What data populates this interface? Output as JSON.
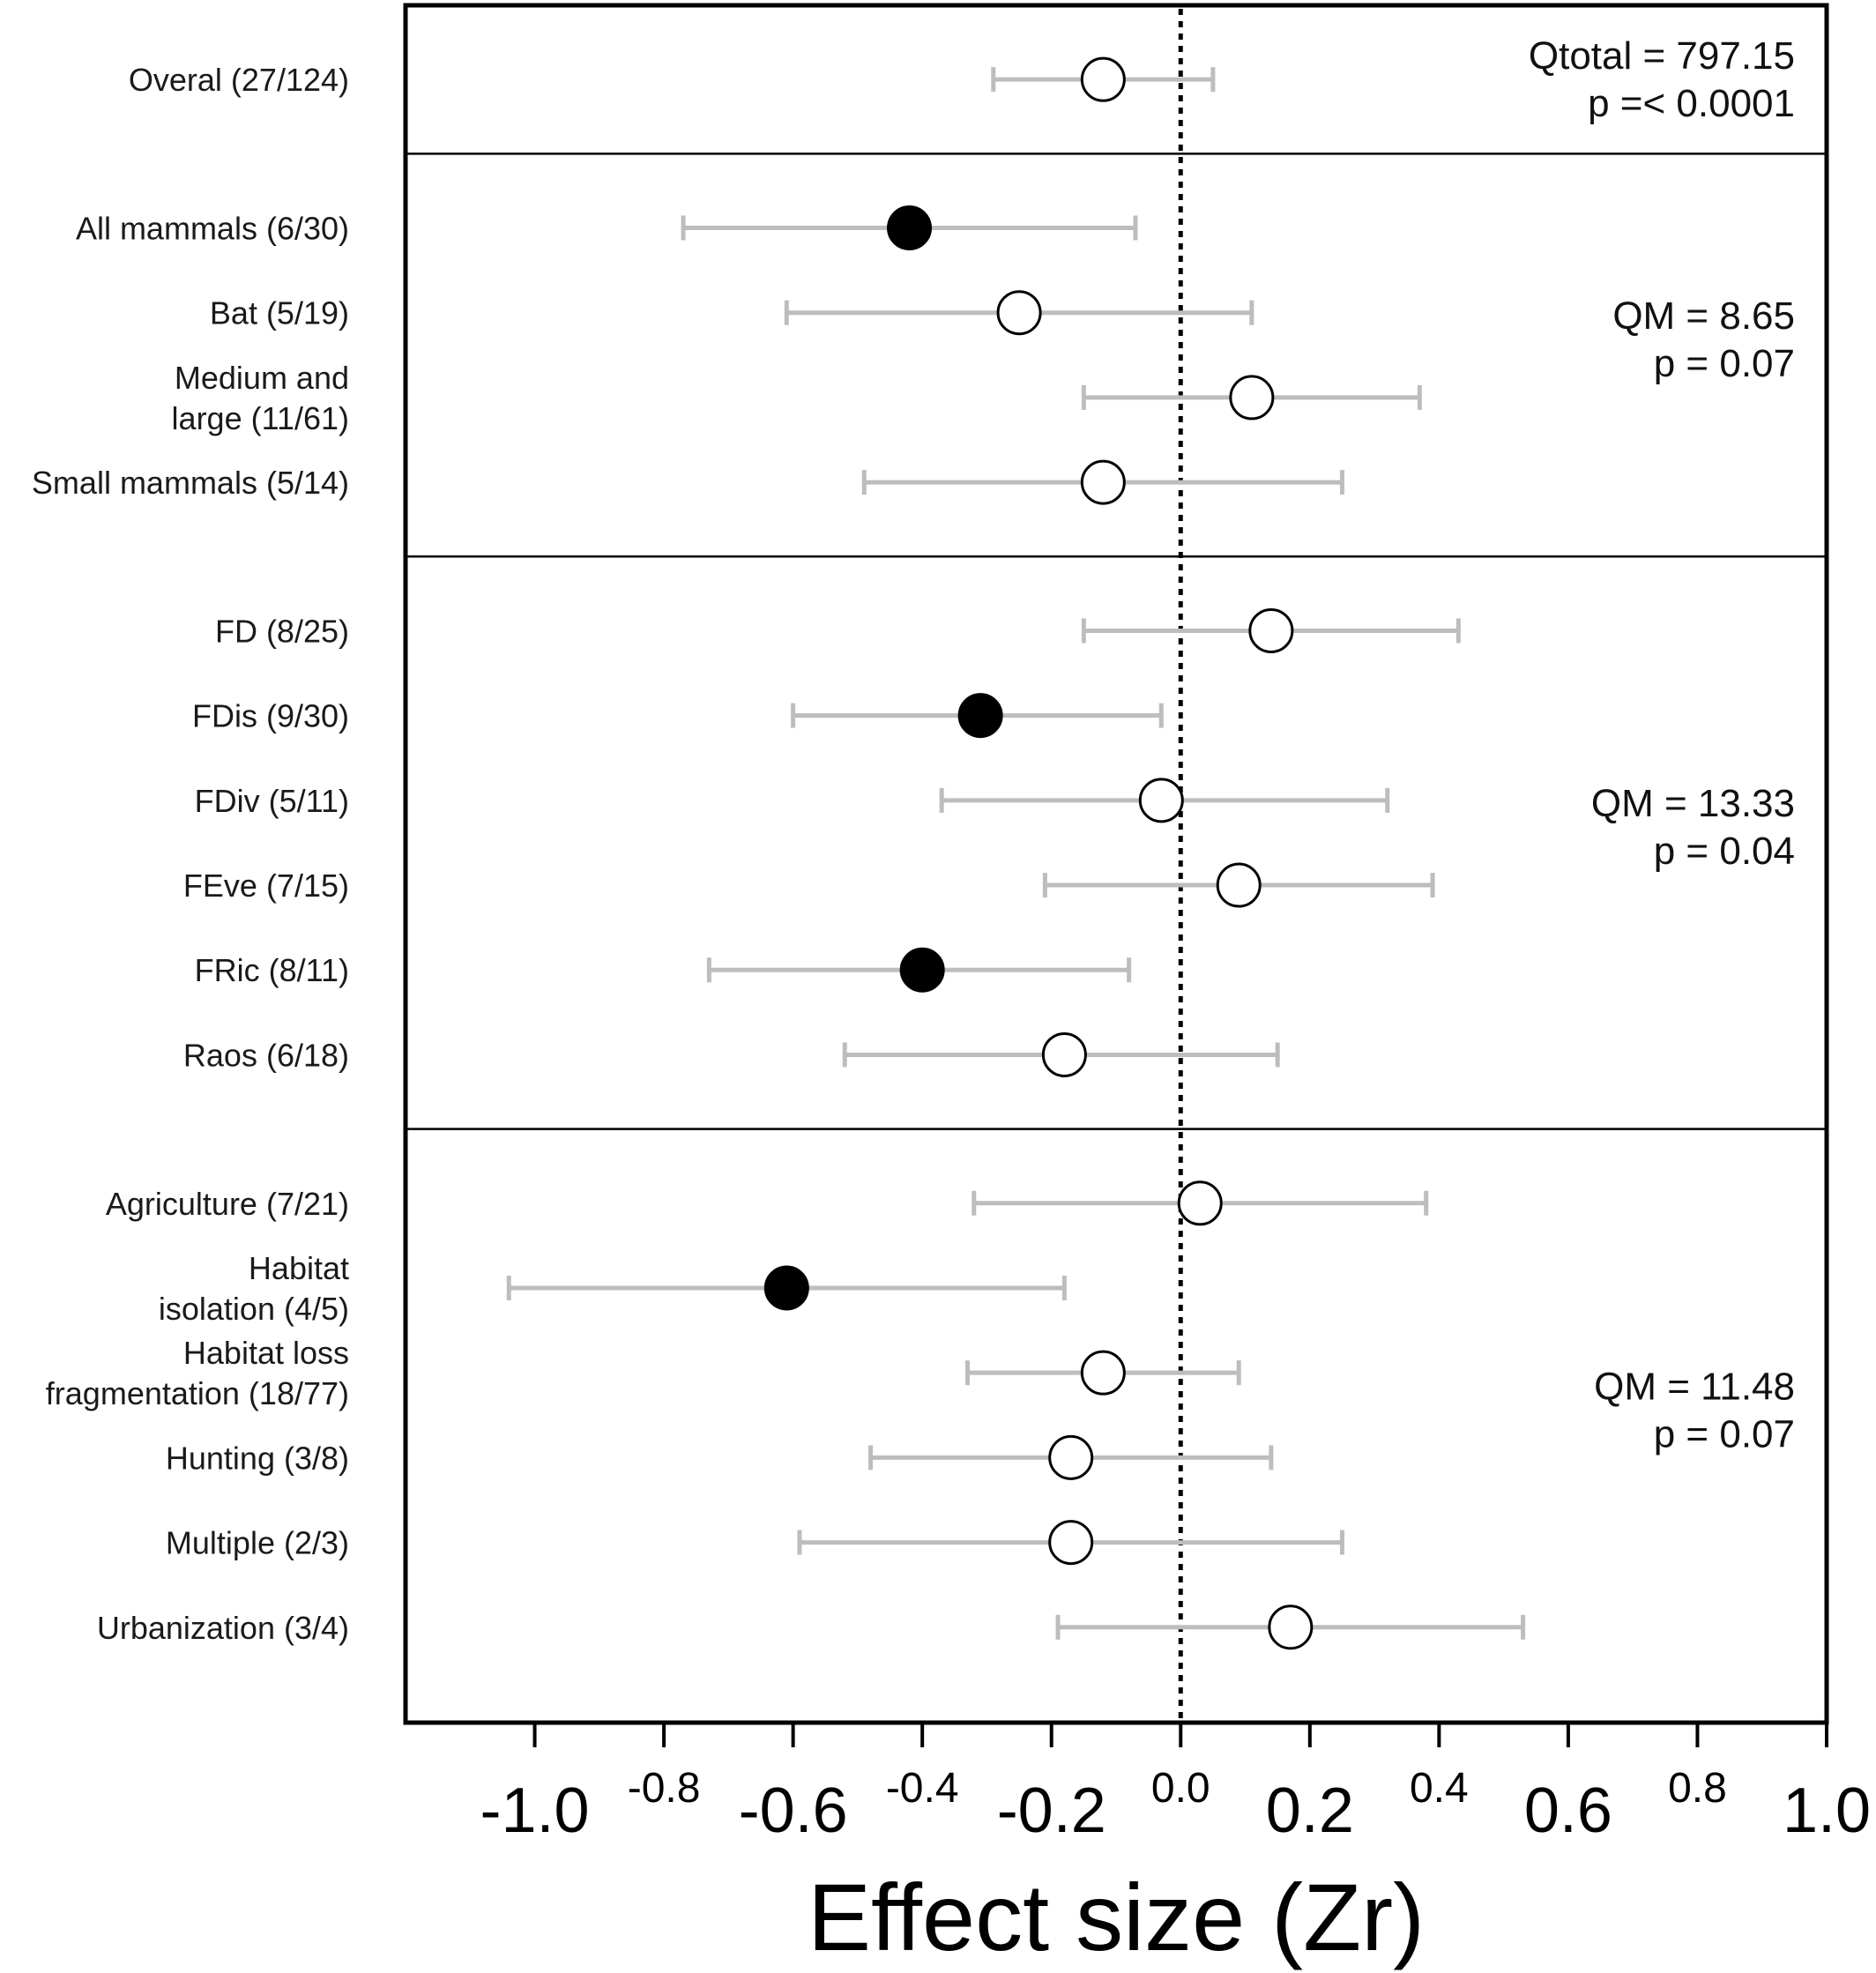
{
  "chart_data": {
    "type": "forest",
    "title": "",
    "xlabel": "Effect size (Zr)",
    "ylabel": "",
    "xlim": [
      -1.2,
      1.0
    ],
    "grid": false,
    "zero_line": {
      "x": 0.0,
      "style": "dotted"
    },
    "x_ticks": [
      {
        "value": -1.0,
        "label": "-1.0",
        "size": "large"
      },
      {
        "value": -0.8,
        "label": "-0.8",
        "size": "small"
      },
      {
        "value": -0.6,
        "label": "-0.6",
        "size": "large"
      },
      {
        "value": -0.4,
        "label": "-0.4",
        "size": "small"
      },
      {
        "value": -0.2,
        "label": "-0.2",
        "size": "large"
      },
      {
        "value": 0.0,
        "label": "0.0",
        "size": "small"
      },
      {
        "value": 0.2,
        "label": "0.2",
        "size": "large"
      },
      {
        "value": 0.4,
        "label": "0.4",
        "size": "small"
      },
      {
        "value": 0.6,
        "label": "0.6",
        "size": "large"
      },
      {
        "value": 0.8,
        "label": "0.8",
        "size": "small"
      },
      {
        "value": 1.0,
        "label": "1.0",
        "size": "large"
      }
    ],
    "panels": [
      {
        "stats": [
          "Qtotal = 797.15",
          "p =< 0.0001"
        ],
        "rows": [
          {
            "label": [
              "Overal (27/124)"
            ],
            "estimate": -0.12,
            "ci_low": -0.29,
            "ci_high": 0.05,
            "significant": false
          }
        ]
      },
      {
        "stats": [
          "QM = 8.65",
          "p = 0.07"
        ],
        "rows": [
          {
            "label": [
              "All mammals (6/30)"
            ],
            "estimate": -0.42,
            "ci_low": -0.77,
            "ci_high": -0.07,
            "significant": true
          },
          {
            "label": [
              "Bat (5/19)"
            ],
            "estimate": -0.25,
            "ci_low": -0.61,
            "ci_high": 0.11,
            "significant": false
          },
          {
            "label": [
              "Medium and",
              "large (11/61)"
            ],
            "estimate": 0.11,
            "ci_low": -0.15,
            "ci_high": 0.37,
            "significant": false
          },
          {
            "label": [
              "Small mammals (5/14)"
            ],
            "estimate": -0.12,
            "ci_low": -0.49,
            "ci_high": 0.25,
            "significant": false
          }
        ]
      },
      {
        "stats": [
          "QM = 13.33",
          "p = 0.04"
        ],
        "rows": [
          {
            "label": [
              "FD (8/25)"
            ],
            "estimate": 0.14,
            "ci_low": -0.15,
            "ci_high": 0.43,
            "significant": false
          },
          {
            "label": [
              "FDis (9/30)"
            ],
            "estimate": -0.31,
            "ci_low": -0.6,
            "ci_high": -0.03,
            "significant": true
          },
          {
            "label": [
              "FDiv (5/11)"
            ],
            "estimate": -0.03,
            "ci_low": -0.37,
            "ci_high": 0.32,
            "significant": false
          },
          {
            "label": [
              "FEve (7/15)"
            ],
            "estimate": 0.09,
            "ci_low": -0.21,
            "ci_high": 0.39,
            "significant": false
          },
          {
            "label": [
              "FRic (8/11)"
            ],
            "estimate": -0.4,
            "ci_low": -0.73,
            "ci_high": -0.08,
            "significant": true
          },
          {
            "label": [
              "Raos (6/18)"
            ],
            "estimate": -0.18,
            "ci_low": -0.52,
            "ci_high": 0.15,
            "significant": false
          }
        ]
      },
      {
        "stats": [
          "QM = 11.48",
          "p = 0.07"
        ],
        "rows": [
          {
            "label": [
              "Agriculture (7/21)"
            ],
            "estimate": 0.03,
            "ci_low": -0.32,
            "ci_high": 0.38,
            "significant": false
          },
          {
            "label": [
              "Habitat",
              "isolation (4/5)"
            ],
            "estimate": -0.61,
            "ci_low": -1.04,
            "ci_high": -0.18,
            "significant": true
          },
          {
            "label": [
              "Habitat loss",
              "fragmentation (18/77)"
            ],
            "estimate": -0.12,
            "ci_low": -0.33,
            "ci_high": 0.09,
            "significant": false
          },
          {
            "label": [
              "Hunting (3/8)"
            ],
            "estimate": -0.17,
            "ci_low": -0.48,
            "ci_high": 0.14,
            "significant": false
          },
          {
            "label": [
              "Multiple (2/3)"
            ],
            "estimate": -0.17,
            "ci_low": -0.59,
            "ci_high": 0.25,
            "significant": false
          },
          {
            "label": [
              "Urbanization (3/4)"
            ],
            "estimate": 0.17,
            "ci_low": -0.19,
            "ci_high": 0.53,
            "significant": false
          }
        ]
      }
    ]
  }
}
